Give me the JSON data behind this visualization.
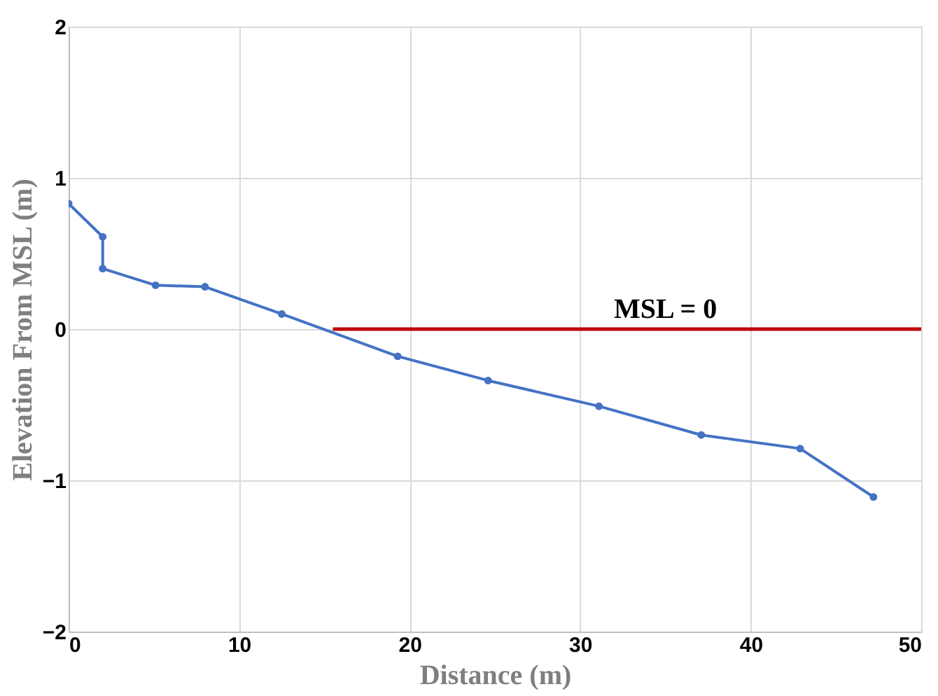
{
  "chart_data": {
    "type": "line",
    "xlabel": "Distance (m)",
    "ylabel": "Elevation From MSL (m)",
    "series": [
      {
        "color": "#4472c4",
        "marker": "circle",
        "x": [
          0,
          2,
          2,
          5.1,
          8,
          12.5,
          19.3,
          24.6,
          31.1,
          37.1,
          42.9,
          47.2
        ],
        "values": [
          0.83,
          0.61,
          0.4,
          0.29,
          0.28,
          0.1,
          -0.18,
          -0.34,
          -0.51,
          -0.7,
          -0.79,
          -1.11
        ]
      },
      {
        "color": "#c00000",
        "marker": "none",
        "x": [
          15.5,
          50
        ],
        "values": [
          0,
          0
        ]
      }
    ],
    "annotations": [
      {
        "text": "MSL = 0",
        "x": 35,
        "y": 0
      }
    ],
    "xlim": [
      0,
      50
    ],
    "xticks": [
      0,
      10,
      20,
      30,
      40,
      50
    ],
    "ylim": [
      -2,
      2
    ],
    "yticks": [
      -2,
      -1,
      0,
      1,
      2
    ],
    "grid": true
  }
}
